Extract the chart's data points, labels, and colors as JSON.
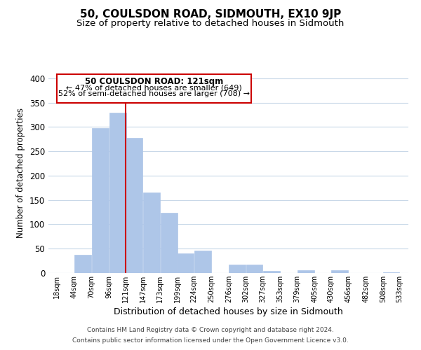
{
  "title": "50, COULSDON ROAD, SIDMOUTH, EX10 9JP",
  "subtitle": "Size of property relative to detached houses in Sidmouth",
  "xlabel": "Distribution of detached houses by size in Sidmouth",
  "ylabel": "Number of detached properties",
  "bar_left_edges": [
    18,
    44,
    70,
    96,
    121,
    147,
    173,
    199,
    224,
    250,
    276,
    302,
    327,
    353,
    379,
    405,
    430,
    456,
    482,
    508
  ],
  "bar_heights": [
    0,
    37,
    298,
    330,
    278,
    165,
    124,
    41,
    46,
    0,
    17,
    17,
    5,
    0,
    6,
    0,
    6,
    0,
    0,
    2
  ],
  "bar_widths": [
    26,
    26,
    26,
    26,
    26,
    26,
    26,
    25,
    26,
    26,
    26,
    25,
    26,
    26,
    26,
    25,
    26,
    26,
    26,
    25
  ],
  "bar_color": "#aec6e8",
  "bar_edge_color": "#aec6e8",
  "property_line_x": 121,
  "property_line_color": "#cc0000",
  "tick_labels": [
    "18sqm",
    "44sqm",
    "70sqm",
    "96sqm",
    "121sqm",
    "147sqm",
    "173sqm",
    "199sqm",
    "224sqm",
    "250sqm",
    "276sqm",
    "302sqm",
    "327sqm",
    "353sqm",
    "379sqm",
    "405sqm",
    "430sqm",
    "456sqm",
    "482sqm",
    "508sqm",
    "533sqm"
  ],
  "tick_positions": [
    18,
    44,
    70,
    96,
    121,
    147,
    173,
    199,
    224,
    250,
    276,
    302,
    327,
    353,
    379,
    405,
    430,
    456,
    482,
    508,
    533
  ],
  "ylim": [
    0,
    410
  ],
  "xlim": [
    5,
    546
  ],
  "yticks": [
    0,
    50,
    100,
    150,
    200,
    250,
    300,
    350,
    400
  ],
  "annotation_title": "50 COULSDON ROAD: 121sqm",
  "annotation_line1": "← 47% of detached houses are smaller (649)",
  "annotation_line2": "52% of semi-detached houses are larger (708) →",
  "annotation_box_color": "#ffffff",
  "annotation_box_edge": "#cc0000",
  "footer_line1": "Contains HM Land Registry data © Crown copyright and database right 2024.",
  "footer_line2": "Contains public sector information licensed under the Open Government Licence v3.0.",
  "bg_color": "#ffffff",
  "grid_color": "#c8d8e8",
  "title_fontsize": 11,
  "subtitle_fontsize": 9.5
}
